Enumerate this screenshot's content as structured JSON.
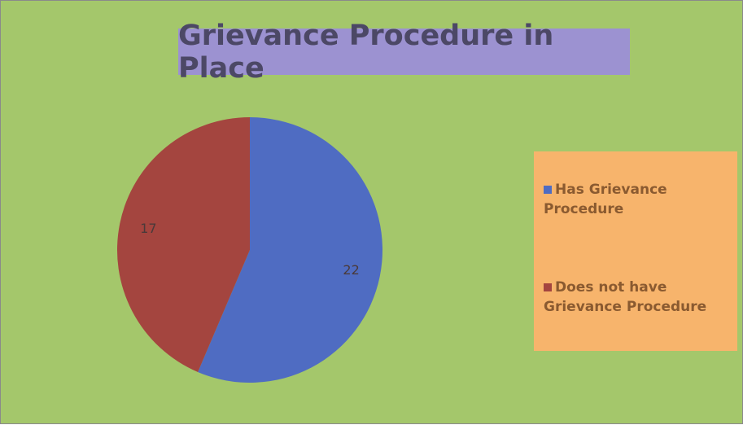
{
  "chart_data": {
    "type": "pie",
    "title": "Grievance Procedure in Place",
    "categories": [
      "Has Grievance Procedure",
      "Does not have Grievance Procedure"
    ],
    "values": [
      22,
      17
    ],
    "colors": [
      "#4f6cc2",
      "#a4453f"
    ],
    "legend": "right"
  }
}
